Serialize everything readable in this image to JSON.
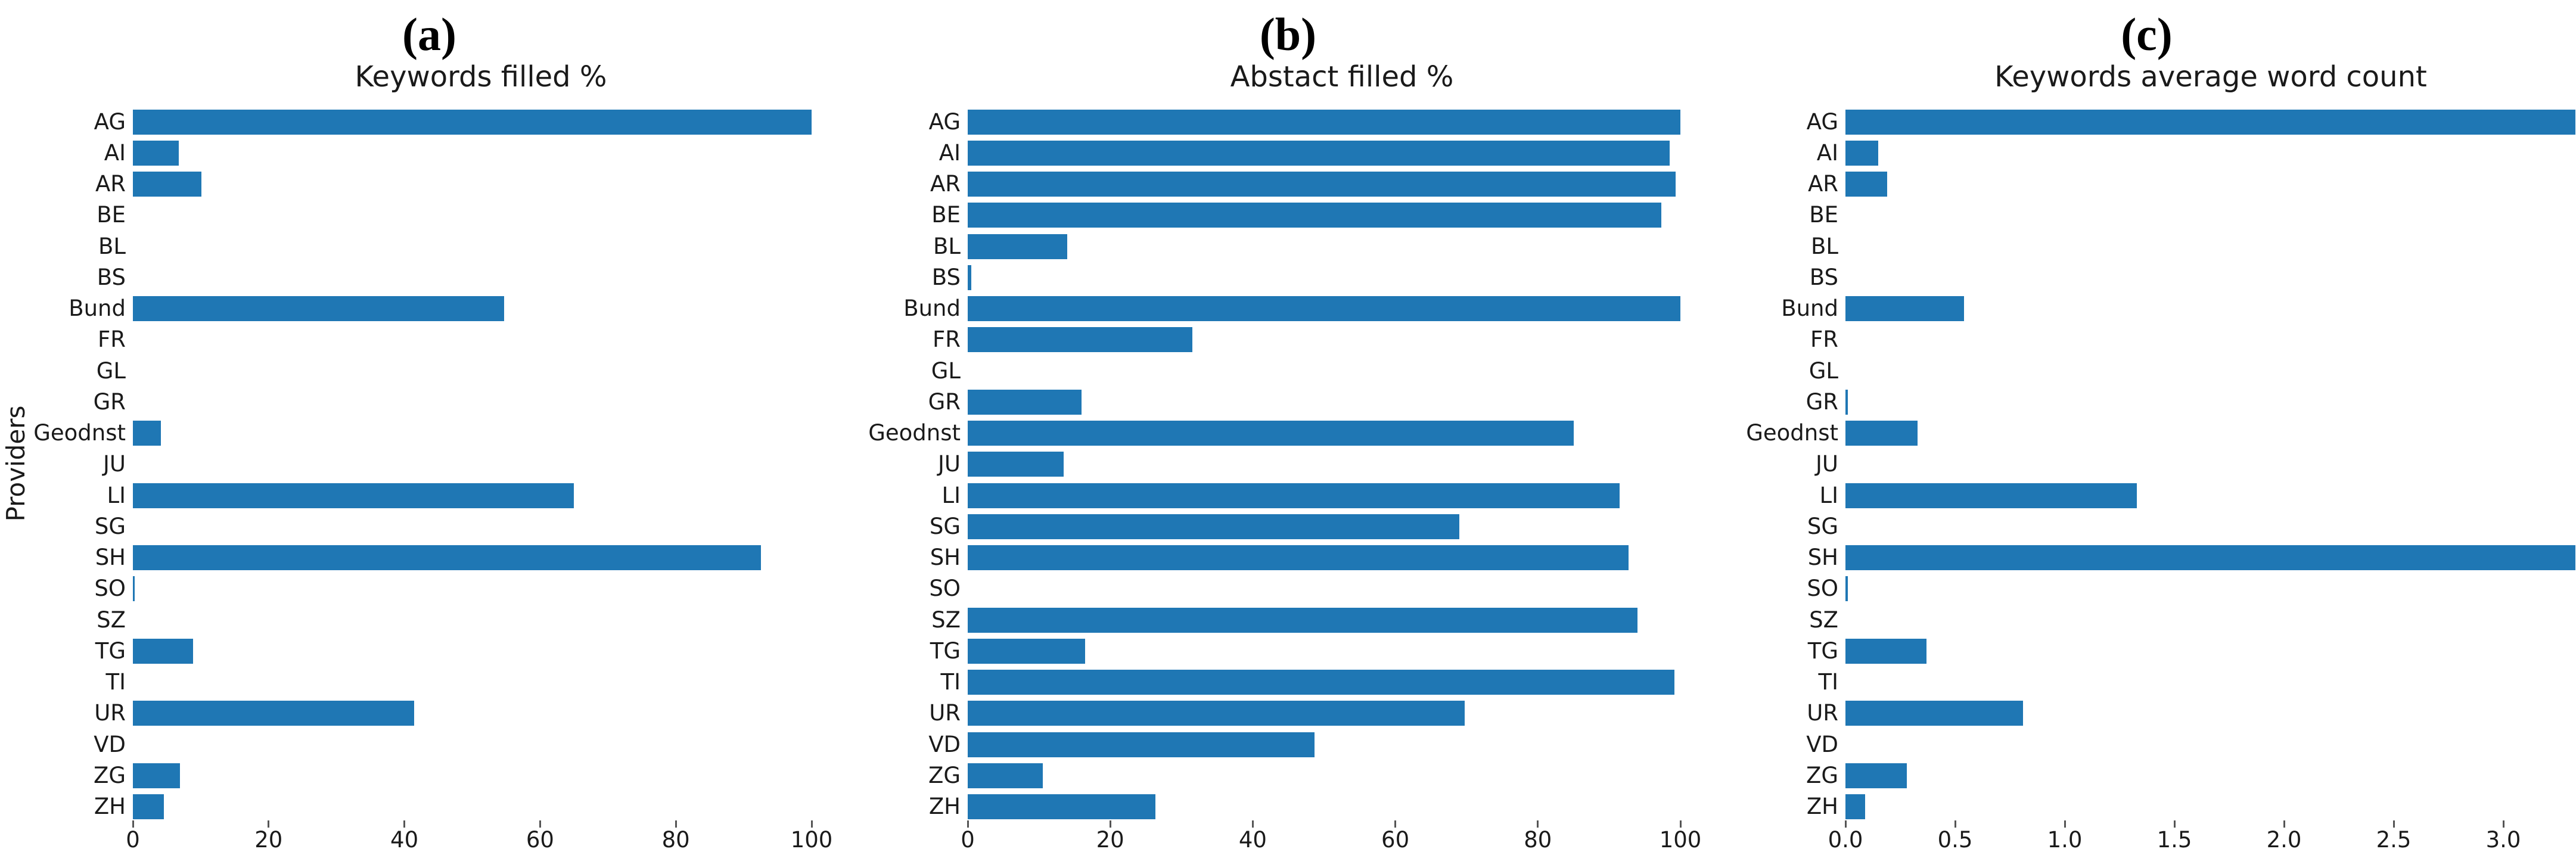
{
  "figure": {
    "background": "#ffffff",
    "bar_color": "#1f77b4",
    "text_color": "#1a1a1a",
    "ylabel": "Providers",
    "categories": [
      "AG",
      "AI",
      "AR",
      "BE",
      "BL",
      "BS",
      "Bund",
      "FR",
      "GL",
      "GR",
      "Geodnst",
      "JU",
      "LI",
      "SG",
      "SH",
      "SO",
      "SZ",
      "TG",
      "TI",
      "UR",
      "VD",
      "ZG",
      "ZH"
    ]
  },
  "chart_data": [
    {
      "type": "bar",
      "orientation": "horizontal",
      "panel_label": "(a)",
      "title": "Keywords filled %",
      "ylabel": "Providers",
      "categories": [
        "AG",
        "AI",
        "AR",
        "BE",
        "BL",
        "BS",
        "Bund",
        "FR",
        "GL",
        "GR",
        "Geodnst",
        "JU",
        "LI",
        "SG",
        "SH",
        "SO",
        "SZ",
        "TG",
        "TI",
        "UR",
        "VD",
        "ZG",
        "ZH"
      ],
      "values": [
        100,
        6.8,
        10.1,
        0,
        0,
        0,
        54.7,
        0,
        0,
        0,
        4.1,
        0,
        65,
        0,
        92.5,
        0.3,
        0,
        8.9,
        0,
        41.4,
        0,
        6.9,
        4.6
      ],
      "xtick_values": [
        0,
        20,
        40,
        60,
        80,
        100
      ],
      "xtick_labels": [
        "0",
        "20",
        "40",
        "60",
        "80",
        "100"
      ],
      "xlim": [
        0,
        105
      ],
      "grid": false,
      "legend": null,
      "bar_color": "#1f77b4"
    },
    {
      "type": "bar",
      "orientation": "horizontal",
      "panel_label": "(b)",
      "title": "Abstact filled %",
      "ylabel": "",
      "categories": [
        "AG",
        "AI",
        "AR",
        "BE",
        "BL",
        "BS",
        "Bund",
        "FR",
        "GL",
        "GR",
        "Geodnst",
        "JU",
        "LI",
        "SG",
        "SH",
        "SO",
        "SZ",
        "TG",
        "TI",
        "UR",
        "VD",
        "ZG",
        "ZH"
      ],
      "values": [
        100,
        98.5,
        99.3,
        97.3,
        14,
        0.5,
        100,
        31.5,
        0,
        16,
        85,
        13.5,
        91.5,
        69,
        92.7,
        0,
        94,
        16.5,
        99.2,
        69.7,
        48.7,
        10.5,
        26.3
      ],
      "xtick_values": [
        0,
        20,
        40,
        60,
        80,
        100
      ],
      "xtick_labels": [
        "0",
        "20",
        "40",
        "60",
        "80",
        "100"
      ],
      "xlim": [
        0,
        105
      ],
      "grid": false,
      "legend": null,
      "bar_color": "#1f77b4"
    },
    {
      "type": "bar",
      "orientation": "horizontal",
      "panel_label": "(c)",
      "title": "Keywords average word count",
      "ylabel": "",
      "categories": [
        "AG",
        "AI",
        "AR",
        "BE",
        "BL",
        "BS",
        "Bund",
        "FR",
        "GL",
        "GR",
        "Geodnst",
        "JU",
        "LI",
        "SG",
        "SH",
        "SO",
        "SZ",
        "TG",
        "TI",
        "UR",
        "VD",
        "ZG",
        "ZH"
      ],
      "values": [
        3.33,
        0.15,
        0.19,
        0,
        0,
        0,
        0.54,
        0,
        0,
        0.01,
        0.33,
        0,
        1.33,
        0,
        3.33,
        0.01,
        0,
        0.37,
        0,
        0.81,
        0,
        0.28,
        0.09
      ],
      "xtick_values": [
        0.0,
        0.5,
        1.0,
        1.5,
        2.0,
        2.5,
        3.0
      ],
      "xtick_labels": [
        "0.0",
        "0.5",
        "1.0",
        "1.5",
        "2.0",
        "2.5",
        "3.0"
      ],
      "xlim": [
        0,
        3.33
      ],
      "clipped_bars": [
        "AG",
        "SH"
      ],
      "grid": false,
      "legend": null,
      "bar_color": "#1f77b4"
    }
  ]
}
